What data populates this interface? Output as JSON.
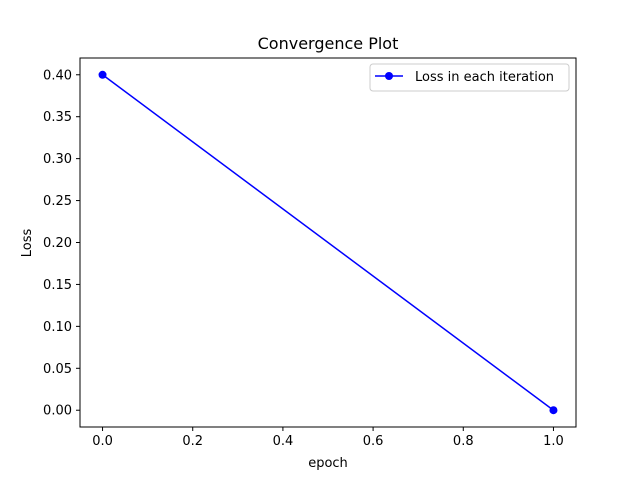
{
  "chart_data": {
    "type": "line",
    "title": "Convergence Plot",
    "xlabel": "epoch",
    "ylabel": "Loss",
    "xlim": [
      -0.05,
      1.05
    ],
    "ylim": [
      -0.02,
      0.42
    ],
    "x_ticks": [
      0.0,
      0.2,
      0.4,
      0.6,
      0.8,
      1.0
    ],
    "x_tick_labels": [
      "0.0",
      "0.2",
      "0.4",
      "0.6",
      "0.8",
      "1.0"
    ],
    "y_ticks": [
      0.0,
      0.05,
      0.1,
      0.15,
      0.2,
      0.25,
      0.3,
      0.35,
      0.4
    ],
    "y_tick_labels": [
      "0.00",
      "0.05",
      "0.10",
      "0.15",
      "0.20",
      "0.25",
      "0.30",
      "0.35",
      "0.40"
    ],
    "grid": false,
    "legend_position": "top-right",
    "series": [
      {
        "name": "Loss in each iteration",
        "color": "#0000ff",
        "marker": "circle",
        "x": [
          0,
          1
        ],
        "y": [
          0.4,
          0.0
        ]
      }
    ]
  }
}
